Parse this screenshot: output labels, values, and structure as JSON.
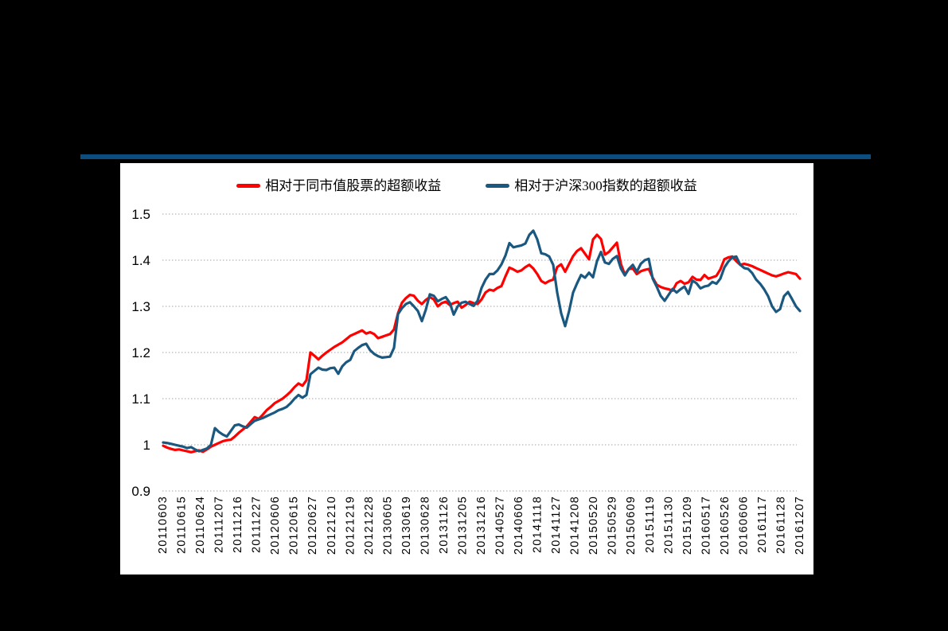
{
  "page": {
    "background": "#000000",
    "header_rule_color": "#0c4d7f"
  },
  "legend": {
    "items": [
      {
        "label": "相对于同市值股票的超额收益",
        "color": "#ff0000"
      },
      {
        "label": "相对于沪深300指数的超额收益",
        "color": "#1a5880"
      }
    ]
  },
  "chart_data": {
    "type": "line",
    "title": "",
    "xlabel": "",
    "ylabel": "",
    "ylim": [
      0.9,
      1.5
    ],
    "y_ticks": [
      1.5,
      1.4,
      1.3,
      1.2,
      1.1,
      1,
      0.9
    ],
    "y_tick_labels": [
      "1.5",
      "1.4",
      "1.3",
      "1.2",
      "1.1",
      "1",
      "0.9"
    ],
    "grid": "horizontal dotted gray",
    "legend_position": "top-center",
    "x_labels": [
      "20110603",
      "20110615",
      "20110624",
      "20111207",
      "20111216",
      "20111227",
      "20120606",
      "20120615",
      "20120627",
      "20121210",
      "20121219",
      "20121228",
      "20130605",
      "20130619",
      "20130628",
      "20131126",
      "20131205",
      "20131216",
      "20140527",
      "20140606",
      "20141118",
      "20141127",
      "20141208",
      "20150520",
      "20150529",
      "20150609",
      "20151119",
      "20151130",
      "20151209",
      "20160517",
      "20160526",
      "20160606",
      "20161117",
      "20161128",
      "20161207"
    ],
    "x_note": "series values are sampled uniformly across the x-axis from the first to the last date label",
    "series": [
      {
        "name": "相对于同市值股票的超额收益",
        "color": "#ff0000",
        "values": [
          0.998,
          0.994,
          0.991,
          0.989,
          0.99,
          0.988,
          0.986,
          0.984,
          0.986,
          0.988,
          0.985,
          0.99,
          0.996,
          1.0,
          1.004,
          1.008,
          1.01,
          1.011,
          1.018,
          1.026,
          1.033,
          1.04,
          1.05,
          1.06,
          1.056,
          1.065,
          1.075,
          1.082,
          1.09,
          1.095,
          1.1,
          1.107,
          1.115,
          1.125,
          1.133,
          1.128,
          1.14,
          1.2,
          1.193,
          1.185,
          1.193,
          1.2,
          1.206,
          1.212,
          1.217,
          1.222,
          1.229,
          1.236,
          1.24,
          1.244,
          1.248,
          1.241,
          1.244,
          1.24,
          1.231,
          1.234,
          1.237,
          1.24,
          1.25,
          1.285,
          1.308,
          1.318,
          1.325,
          1.323,
          1.312,
          1.305,
          1.314,
          1.32,
          1.315,
          1.3,
          1.307,
          1.31,
          1.303,
          1.307,
          1.31,
          1.297,
          1.303,
          1.31,
          1.307,
          1.305,
          1.315,
          1.33,
          1.336,
          1.334,
          1.34,
          1.344,
          1.365,
          1.384,
          1.38,
          1.375,
          1.378,
          1.385,
          1.39,
          1.382,
          1.37,
          1.355,
          1.35,
          1.355,
          1.358,
          1.385,
          1.391,
          1.375,
          1.392,
          1.409,
          1.42,
          1.426,
          1.414,
          1.402,
          1.445,
          1.455,
          1.446,
          1.412,
          1.418,
          1.428,
          1.438,
          1.392,
          1.369,
          1.381,
          1.382,
          1.37,
          1.376,
          1.379,
          1.381,
          1.362,
          1.347,
          1.342,
          1.339,
          1.337,
          1.334,
          1.35,
          1.355,
          1.349,
          1.352,
          1.364,
          1.358,
          1.357,
          1.368,
          1.36,
          1.363,
          1.366,
          1.38,
          1.402,
          1.406,
          1.408,
          1.398,
          1.39,
          1.392,
          1.39,
          1.387,
          1.383,
          1.379,
          1.375,
          1.371,
          1.367,
          1.365,
          1.368,
          1.371,
          1.374,
          1.372,
          1.37,
          1.36
        ]
      },
      {
        "name": "相对于沪深300指数的超额收益",
        "color": "#1a5880",
        "values": [
          1.005,
          1.004,
          1.002,
          1.0,
          0.998,
          0.996,
          0.993,
          0.995,
          0.99,
          0.986,
          0.989,
          0.992,
          1.0,
          1.036,
          1.028,
          1.022,
          1.018,
          1.03,
          1.042,
          1.044,
          1.04,
          1.037,
          1.045,
          1.052,
          1.055,
          1.058,
          1.062,
          1.066,
          1.07,
          1.075,
          1.078,
          1.082,
          1.09,
          1.1,
          1.108,
          1.102,
          1.108,
          1.153,
          1.16,
          1.167,
          1.163,
          1.162,
          1.166,
          1.167,
          1.154,
          1.17,
          1.179,
          1.184,
          1.203,
          1.21,
          1.216,
          1.219,
          1.205,
          1.197,
          1.192,
          1.189,
          1.19,
          1.191,
          1.21,
          1.283,
          1.296,
          1.305,
          1.309,
          1.3,
          1.29,
          1.268,
          1.293,
          1.326,
          1.323,
          1.311,
          1.316,
          1.32,
          1.308,
          1.282,
          1.3,
          1.308,
          1.31,
          1.305,
          1.301,
          1.312,
          1.34,
          1.358,
          1.37,
          1.37,
          1.378,
          1.391,
          1.41,
          1.437,
          1.428,
          1.43,
          1.432,
          1.436,
          1.455,
          1.464,
          1.445,
          1.415,
          1.413,
          1.408,
          1.39,
          1.33,
          1.285,
          1.257,
          1.29,
          1.33,
          1.35,
          1.368,
          1.362,
          1.373,
          1.363,
          1.398,
          1.418,
          1.395,
          1.392,
          1.403,
          1.409,
          1.382,
          1.367,
          1.381,
          1.39,
          1.375,
          1.392,
          1.4,
          1.403,
          1.36,
          1.343,
          1.323,
          1.312,
          1.325,
          1.338,
          1.33,
          1.337,
          1.343,
          1.327,
          1.356,
          1.35,
          1.339,
          1.343,
          1.345,
          1.353,
          1.349,
          1.36,
          1.384,
          1.397,
          1.406,
          1.408,
          1.39,
          1.383,
          1.381,
          1.372,
          1.358,
          1.349,
          1.337,
          1.322,
          1.3,
          1.288,
          1.294,
          1.322,
          1.331,
          1.316,
          1.3,
          1.29
        ]
      }
    ]
  }
}
